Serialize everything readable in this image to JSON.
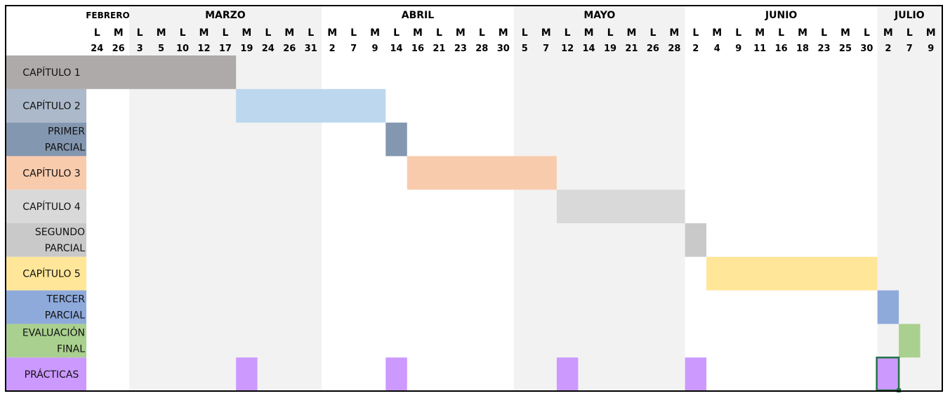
{
  "chart_data": {
    "type": "gantt",
    "months": [
      {
        "label": "FEBRERO",
        "start": 0,
        "end": 2
      },
      {
        "label": "MARZO",
        "start": 2,
        "end": 11
      },
      {
        "label": "ABRIL",
        "start": 11,
        "end": 20
      },
      {
        "label": "MAYO",
        "start": 20,
        "end": 28
      },
      {
        "label": "JUNIO",
        "start": 28,
        "end": 37
      },
      {
        "label": "JULIO",
        "start": 37,
        "end": 40
      }
    ],
    "days": [
      "L",
      "M",
      "L",
      "M",
      "L",
      "M",
      "L",
      "M",
      "L",
      "M",
      "L",
      "M",
      "L",
      "M",
      "L",
      "M",
      "L",
      "M",
      "L",
      "M",
      "L",
      "M",
      "L",
      "M",
      "L",
      "M",
      "L",
      "M",
      "L",
      "M",
      "L",
      "M",
      "L",
      "M",
      "L",
      "M",
      "L",
      "M",
      "L",
      "M"
    ],
    "dates": [
      "24",
      "26",
      "3",
      "5",
      "10",
      "12",
      "17",
      "19",
      "24",
      "26",
      "31",
      "2",
      "7",
      "9",
      "14",
      "16",
      "21",
      "23",
      "28",
      "30",
      "5",
      "7",
      "12",
      "14",
      "19",
      "21",
      "26",
      "28",
      "2",
      "4",
      "9",
      "11",
      "16",
      "18",
      "23",
      "25",
      "30",
      "2",
      "7",
      "9"
    ],
    "tasks": [
      {
        "label": "CAPÍTULO 1",
        "lines": [
          "CAPÍTULO 1"
        ],
        "color": "#aeaaaa",
        "start": 0,
        "end": 7
      },
      {
        "label": "CAPÍTULO 2",
        "lines": [
          "CAPÍTULO 2"
        ],
        "color": "#bdd7ee",
        "label_color": "#acb9ca",
        "start": 7,
        "end": 14
      },
      {
        "label": "PRIMER PARCIAL",
        "lines": [
          "PRIMER",
          "PARCIAL"
        ],
        "color": "#8497b0",
        "start": 14,
        "end": 15
      },
      {
        "label": "CAPÍTULO 3",
        "lines": [
          "CAPÍTULO 3"
        ],
        "color": "#f8cbad",
        "start": 15,
        "end": 22
      },
      {
        "label": "CAPÍTULO 4",
        "lines": [
          "CAPÍTULO 4"
        ],
        "color": "#d9d9d9",
        "start": 22,
        "end": 28
      },
      {
        "label": "SEGUNDO PARCIAL",
        "lines": [
          "SEGUNDO",
          "PARCIAL"
        ],
        "color": "#c9c9c9",
        "start": 28,
        "end": 29
      },
      {
        "label": "CAPÍTULO 5",
        "lines": [
          "CAPÍTULO 5"
        ],
        "color": "#ffe699",
        "start": 29,
        "end": 37
      },
      {
        "label": "TERCER PARCIAL",
        "lines": [
          "TERCER",
          "PARCIAL"
        ],
        "color": "#8eaadb",
        "start": 37,
        "end": 38
      },
      {
        "label": "EVALUACIÓN FINAL",
        "lines": [
          "EVALUACIÓN",
          "FINAL"
        ],
        "color": "#a9d08e",
        "start": 38,
        "end": 39
      },
      {
        "label": "PRÁCTICAS",
        "lines": [
          "PRÁCTICAS"
        ],
        "color": "#cc99ff",
        "segments": [
          [
            7,
            8
          ],
          [
            14,
            15
          ],
          [
            22,
            23
          ],
          [
            28,
            29
          ],
          [
            37,
            38
          ]
        ]
      }
    ],
    "shaded_months": [
      "MARZO",
      "MAYO",
      "JULIO"
    ],
    "shade_color": "#f2f2f2",
    "selection_color": "#217346"
  }
}
